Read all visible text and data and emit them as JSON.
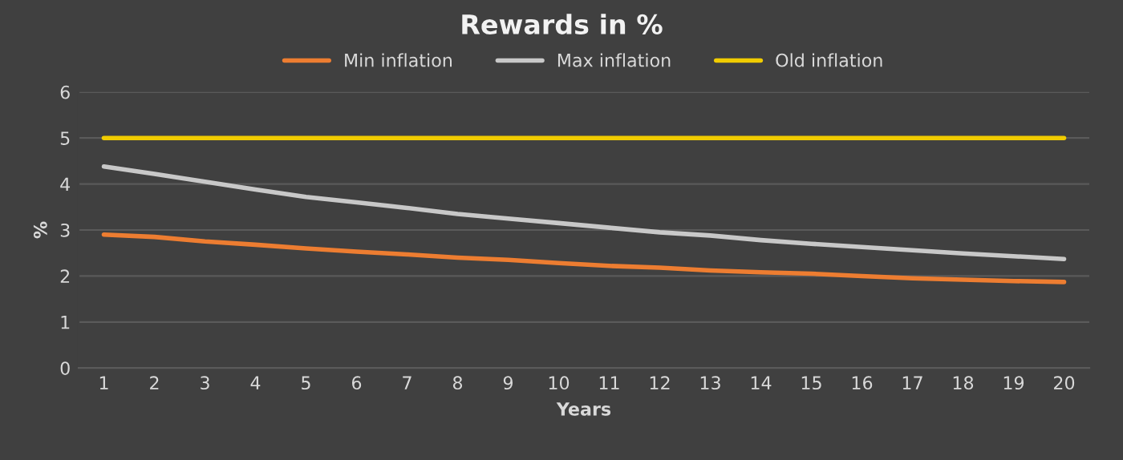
{
  "chart_data": {
    "type": "line",
    "title": "Rewards in %",
    "xlabel": "Years",
    "ylabel": "%",
    "categories": [
      "1",
      "2",
      "3",
      "4",
      "5",
      "6",
      "7",
      "8",
      "9",
      "10",
      "11",
      "12",
      "13",
      "14",
      "15",
      "16",
      "17",
      "18",
      "19",
      "20"
    ],
    "series": [
      {
        "name": "Min inflation",
        "color": "#ed7d31",
        "values": [
          2.9,
          2.85,
          2.75,
          2.68,
          2.6,
          2.53,
          2.47,
          2.4,
          2.35,
          2.28,
          2.22,
          2.18,
          2.12,
          2.08,
          2.05,
          2.0,
          1.95,
          1.92,
          1.89,
          1.87
        ]
      },
      {
        "name": "Max inflation",
        "color": "#c8c8c8",
        "values": [
          4.38,
          4.22,
          4.05,
          3.88,
          3.72,
          3.6,
          3.48,
          3.35,
          3.25,
          3.15,
          3.05,
          2.95,
          2.88,
          2.78,
          2.7,
          2.63,
          2.56,
          2.49,
          2.43,
          2.37
        ]
      },
      {
        "name": "Old inflation",
        "color": "#f0cc00",
        "values": [
          5,
          5,
          5,
          5,
          5,
          5,
          5,
          5,
          5,
          5,
          5,
          5,
          5,
          5,
          5,
          5,
          5,
          5,
          5,
          5
        ]
      }
    ],
    "ylim": [
      0,
      6
    ],
    "yticks": [
      0,
      1,
      2,
      3,
      4,
      5,
      6
    ],
    "grid": "y",
    "legend": "top",
    "marker": "none",
    "line_style": "solid"
  }
}
